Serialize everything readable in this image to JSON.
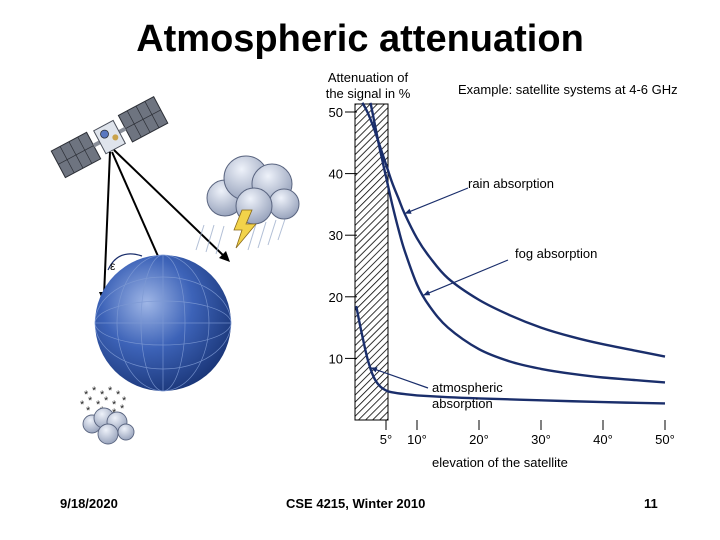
{
  "title": "Atmospheric attenuation",
  "footer": {
    "date": "9/18/2020",
    "course": "CSE 4215, Winter 2010",
    "page": "11"
  },
  "illustration": {
    "satellite_icon": "satellite-icon",
    "cloud_icon": "storm-cloud-icon",
    "globe_icon": "earth-globe-icon",
    "snow_icon": "snow-cloud-icon",
    "angle_symbol": "ε",
    "globe_color": "#2a4f9a",
    "cloud_color": "#c9d4e8"
  },
  "chart_data": {
    "type": "line",
    "title": "Atmospheric attenuation",
    "subtitle": "Example: satellite systems at 4-6 GHz",
    "ylabel": "Attenuation of the signal in %",
    "xlabel": "elevation of the satellite",
    "xlim": [
      0,
      50
    ],
    "ylim": [
      0,
      50
    ],
    "x_ticks": [
      5,
      10,
      20,
      30,
      40,
      50
    ],
    "x_tick_labels": [
      "5°",
      "10°",
      "20°",
      "30°",
      "40°",
      "50°"
    ],
    "y_ticks": [
      10,
      20,
      30,
      40,
      50
    ],
    "y_tick_labels": [
      "10",
      "20",
      "30",
      "40",
      "50"
    ],
    "grid": false,
    "hatched_region": [
      0,
      5
    ],
    "line_color": "#1a2e6b",
    "series": [
      {
        "name": "rain absorption",
        "x": [
          1.2,
          2,
          3,
          4,
          5,
          6,
          7,
          8,
          10,
          12,
          15,
          20,
          25,
          30,
          35,
          40,
          45,
          50
        ],
        "y": [
          51.5,
          50,
          47.5,
          44.5,
          41.5,
          38.5,
          36,
          33.5,
          29.5,
          26.5,
          23,
          19.5,
          17,
          15,
          13.5,
          12.3,
          11.3,
          10.3
        ]
      },
      {
        "name": "fog absorption",
        "x": [
          2.5,
          3,
          4,
          5,
          6,
          7,
          8,
          10,
          12,
          15,
          20,
          25,
          30,
          35,
          40,
          45,
          50
        ],
        "y": [
          51.5,
          49,
          44,
          39.5,
          35,
          31,
          27.5,
          22,
          18.5,
          15,
          11.5,
          9.5,
          8.3,
          7.5,
          6.9,
          6.5,
          6.1
        ]
      },
      {
        "name": "atmospheric absorption",
        "x": [
          0.2,
          1,
          2,
          3,
          4,
          5,
          6,
          8,
          10,
          15,
          20,
          30,
          40,
          50
        ],
        "y": [
          18.5,
          14.5,
          10,
          7,
          5.5,
          4.8,
          4.5,
          4.2,
          4.0,
          3.7,
          3.5,
          3.2,
          2.9,
          2.7
        ]
      }
    ],
    "annotations": [
      {
        "text": "rain absorption",
        "series": 0,
        "arrow_to_x": 8.0
      },
      {
        "text": "fog absorption",
        "series": 1,
        "arrow_to_x": 11.0
      },
      {
        "text": "atmospheric absorption",
        "series": 2,
        "arrow_to_x": 2.5
      }
    ]
  }
}
